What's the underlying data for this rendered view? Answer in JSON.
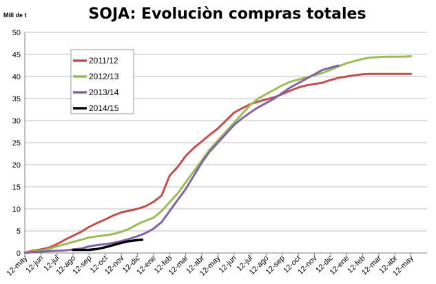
{
  "chart_data": {
    "type": "line",
    "title": "SOJA: Evoluciòn compras totales",
    "unit_label": "Mill de t",
    "ylim": [
      0,
      50
    ],
    "yticks": [
      "0",
      "5",
      "10",
      "15",
      "20",
      "25",
      "30",
      "35",
      "40",
      "45",
      "50"
    ],
    "categories": [
      "12-may",
      "12-jun",
      "12-jul",
      "12-ago",
      "12-sep",
      "12-oct",
      "12-nov",
      "12-dic",
      "12-ene",
      "12-feb",
      "12-mar",
      "12-abr",
      "12-may",
      "12-jun",
      "12-jul",
      "12-ago",
      "12-sep",
      "12-oct",
      "12-nov",
      "12-dic",
      "12-ene",
      "12-feb",
      "12-mar",
      "12-abr",
      "12-may"
    ],
    "grid": true,
    "legend_position": "upper-left",
    "series": [
      {
        "name": "2011/12",
        "color": "#c0504d",
        "x": [
          0,
          0.5,
          1,
          1.5,
          2,
          2.5,
          3,
          3.5,
          4,
          4.5,
          5,
          5.5,
          6,
          6.5,
          7,
          7.5,
          8,
          8.5,
          9,
          9.5,
          10,
          10.5,
          11,
          11.5,
          12,
          12.5,
          13,
          13.5,
          14,
          14.5,
          15,
          15.5,
          16,
          16.5,
          17,
          17.5,
          18,
          18.5,
          19,
          19.5,
          20,
          20.5,
          21,
          21.5,
          22,
          22.5,
          23,
          23.5,
          24
        ],
        "y": [
          0.1,
          0.5,
          0.8,
          1.2,
          2.0,
          3.0,
          3.9,
          4.8,
          5.9,
          6.8,
          7.6,
          8.5,
          9.2,
          9.6,
          10.0,
          10.6,
          11.6,
          13.0,
          17.5,
          19.5,
          22.0,
          23.8,
          25.3,
          26.8,
          28.2,
          30.0,
          31.8,
          32.8,
          33.7,
          34.3,
          34.8,
          35.3,
          36.0,
          36.8,
          37.5,
          38.0,
          38.3,
          38.6,
          39.2,
          39.7,
          40.0,
          40.3,
          40.5,
          40.6,
          40.6,
          40.6,
          40.6,
          40.6,
          40.6
        ]
      },
      {
        "name": "2012/13",
        "color": "#9bbb59",
        "x": [
          0,
          0.5,
          1,
          1.5,
          2,
          2.5,
          3,
          3.5,
          4,
          4.5,
          5,
          5.5,
          6,
          6.5,
          7,
          7.5,
          8,
          8.5,
          9,
          9.5,
          10,
          10.5,
          11,
          11.5,
          12,
          12.5,
          13,
          13.5,
          14,
          14.5,
          15,
          15.5,
          16,
          16.5,
          17,
          17.5,
          18,
          18.5,
          19,
          19.5,
          20,
          20.5,
          21,
          21.5,
          22,
          22.5,
          23,
          23.5,
          24
        ],
        "y": [
          0.1,
          0.3,
          0.5,
          0.9,
          1.5,
          2.0,
          2.5,
          3.0,
          3.5,
          3.8,
          4.0,
          4.3,
          4.8,
          5.5,
          6.5,
          7.3,
          8.0,
          9.5,
          11.5,
          13.5,
          16.0,
          18.5,
          21.0,
          23.5,
          25.5,
          27.5,
          29.5,
          31.5,
          33.5,
          35.0,
          36.0,
          37.0,
          38.0,
          38.8,
          39.3,
          39.8,
          40.3,
          40.8,
          41.5,
          42.3,
          43.0,
          43.5,
          44.0,
          44.3,
          44.4,
          44.5,
          44.5,
          44.5,
          44.6
        ]
      },
      {
        "name": "2013/14",
        "color": "#8064a2",
        "x": [
          0,
          0.5,
          1,
          1.5,
          2,
          2.5,
          3,
          3.5,
          4,
          4.5,
          5,
          5.5,
          6,
          6.5,
          7,
          7.5,
          8,
          8.5,
          9,
          9.5,
          10,
          10.5,
          11,
          11.5,
          12,
          12.5,
          13,
          13.5,
          14,
          14.5,
          15,
          15.5,
          16,
          16.5,
          17,
          17.5,
          18,
          18.5,
          19,
          19.5
        ],
        "y": [
          0.0,
          0.2,
          0.3,
          0.4,
          0.5,
          0.6,
          0.8,
          1.0,
          1.5,
          1.8,
          2.0,
          2.3,
          2.7,
          3.2,
          3.8,
          4.5,
          5.5,
          7.0,
          9.5,
          12.0,
          14.5,
          17.5,
          20.5,
          23.0,
          25.0,
          27.0,
          29.0,
          30.5,
          31.8,
          33.0,
          34.0,
          35.0,
          36.3,
          37.5,
          38.5,
          39.5,
          40.5,
          41.5,
          42.0,
          42.5
        ]
      },
      {
        "name": "2014/15",
        "color": "#000000",
        "x": [
          3,
          3.5,
          4,
          4.5,
          5,
          5.5,
          6,
          6.5,
          7,
          7.3
        ],
        "y": [
          0.7,
          0.7,
          0.7,
          0.9,
          1.3,
          1.8,
          2.3,
          2.7,
          2.9,
          3.0
        ]
      }
    ]
  }
}
